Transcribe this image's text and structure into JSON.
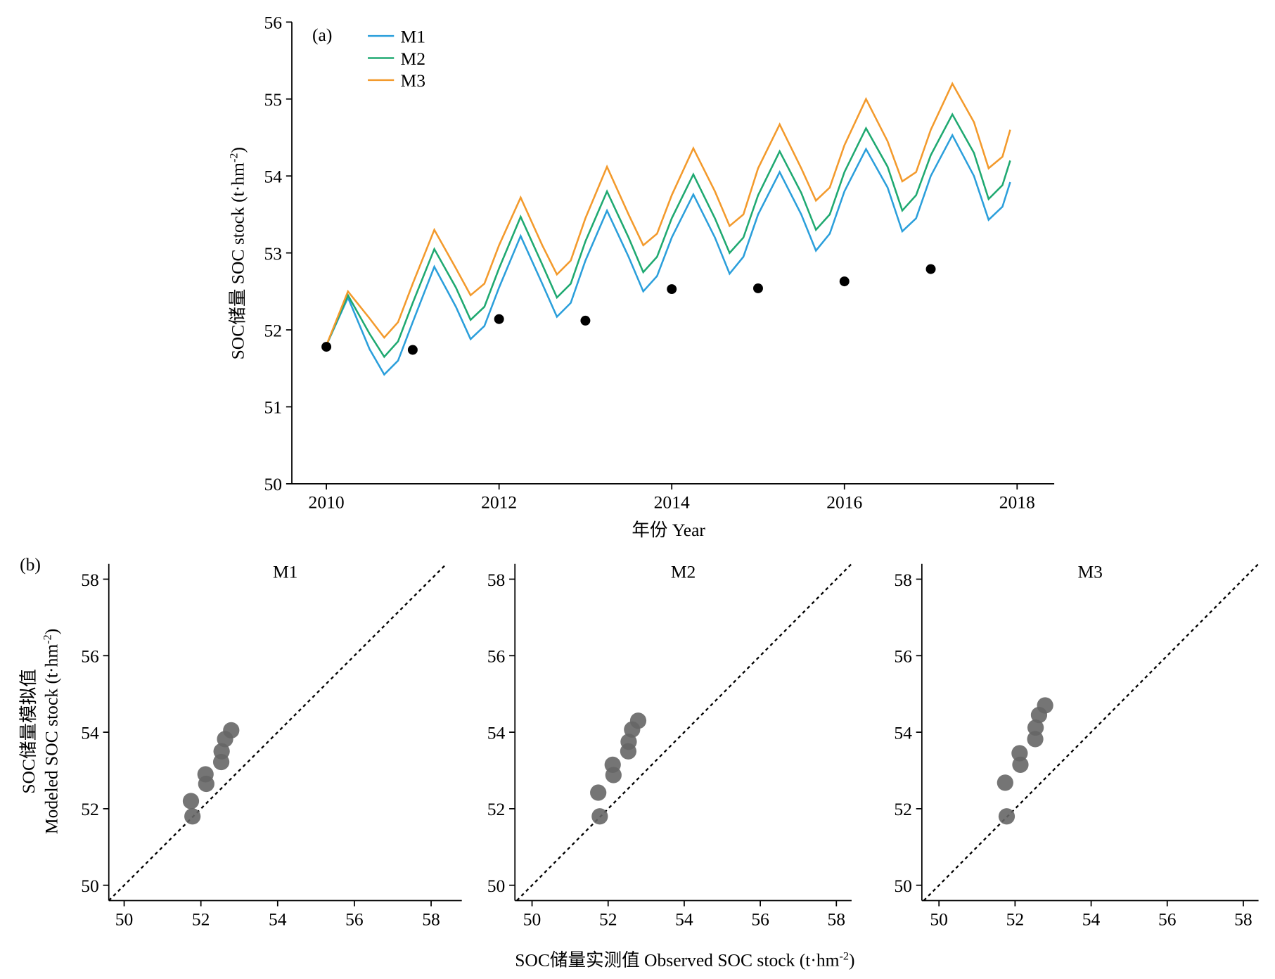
{
  "figure_labels": {
    "b_ylabel_cn": "SOC储量模拟值",
    "b_ylabel_en": "Modeled SOC stock (t·hm",
    "b_ylabel_sup": "-2",
    "b_ylabel_tail": ")",
    "b_xlabel": "SOC储量实测值 Observed SOC stock (t·hm",
    "b_xlabel_sup": "-2",
    "b_xlabel_tail": ")",
    "b_panel": "(b)"
  },
  "chart_data": [
    {
      "type": "line",
      "panel": "(a)",
      "xlabel": "年份 Year",
      "ylabel": "SOC储量 SOC stock (t·hm",
      "ylabel_sup": "-2",
      "ylabel_tail": ")",
      "x": [
        2010,
        2010.25,
        2010.5,
        2010.67,
        2010.83,
        2011,
        2011.25,
        2011.5,
        2011.67,
        2011.83,
        2012,
        2012.25,
        2012.5,
        2012.67,
        2012.83,
        2013,
        2013.25,
        2013.5,
        2013.67,
        2013.83,
        2014,
        2014.25,
        2014.5,
        2014.67,
        2014.83,
        2015,
        2015.25,
        2015.5,
        2015.67,
        2015.83,
        2016,
        2016.25,
        2016.5,
        2016.67,
        2016.83,
        2017,
        2017.25,
        2017.5,
        2017.67,
        2017.83,
        2017.92
      ],
      "series": [
        {
          "name": "M1",
          "color": "#2b9fdb",
          "values": [
            51.8,
            52.42,
            51.75,
            51.42,
            51.6,
            52.1,
            52.82,
            52.3,
            51.88,
            52.05,
            52.55,
            53.22,
            52.6,
            52.17,
            52.35,
            52.9,
            53.55,
            52.95,
            52.5,
            52.7,
            53.2,
            53.76,
            53.2,
            52.73,
            52.95,
            53.5,
            54.05,
            53.5,
            53.03,
            53.25,
            53.8,
            54.35,
            53.85,
            53.28,
            53.45,
            54.0,
            54.53,
            54.0,
            53.43,
            53.6,
            53.92
          ]
        },
        {
          "name": "M2",
          "color": "#1fa971",
          "values": [
            51.8,
            52.45,
            51.95,
            51.65,
            51.85,
            52.35,
            53.05,
            52.55,
            52.13,
            52.3,
            52.8,
            53.47,
            52.85,
            52.42,
            52.6,
            53.15,
            53.8,
            53.2,
            52.75,
            52.95,
            53.45,
            54.02,
            53.45,
            53.0,
            53.2,
            53.75,
            54.32,
            53.78,
            53.3,
            53.5,
            54.05,
            54.62,
            54.12,
            53.55,
            53.75,
            54.27,
            54.8,
            54.3,
            53.7,
            53.88,
            54.2
          ]
        },
        {
          "name": "M3",
          "color": "#f39a2c",
          "values": [
            51.8,
            52.5,
            52.15,
            51.9,
            52.1,
            52.6,
            53.3,
            52.8,
            52.45,
            52.6,
            53.1,
            53.72,
            53.1,
            52.72,
            52.9,
            53.45,
            54.12,
            53.5,
            53.1,
            53.25,
            53.75,
            54.36,
            53.8,
            53.35,
            53.5,
            54.1,
            54.67,
            54.1,
            53.68,
            53.85,
            54.4,
            55.0,
            54.45,
            53.93,
            54.05,
            54.6,
            55.2,
            54.7,
            54.1,
            54.25,
            54.6
          ]
        }
      ],
      "observed": {
        "color": "#000000",
        "x": [
          2010,
          2011,
          2012,
          2013,
          2014,
          2015,
          2016,
          2017
        ],
        "values": [
          51.78,
          51.74,
          52.14,
          52.12,
          52.53,
          52.54,
          52.63,
          52.79
        ]
      },
      "xlim": [
        2009.6,
        2018.43
      ],
      "xticks": [
        2010,
        2012,
        2014,
        2016,
        2018
      ],
      "ylim": [
        50,
        56
      ],
      "yticks": [
        50,
        51,
        52,
        53,
        54,
        55,
        56
      ],
      "legend": "upper left"
    },
    {
      "type": "scatter",
      "title": "M1",
      "color": "#666666",
      "reference_line": true,
      "x": [
        51.78,
        51.74,
        52.14,
        52.12,
        52.53,
        52.54,
        52.63,
        52.79
      ],
      "values": [
        51.8,
        52.2,
        52.65,
        52.9,
        53.22,
        53.5,
        53.82,
        54.05
      ],
      "xlim": [
        49.6,
        58.8
      ],
      "xticks": [
        50,
        52,
        54,
        56,
        58
      ],
      "ylim": [
        49.6,
        58.4
      ],
      "yticks": [
        50,
        52,
        54,
        56,
        58
      ]
    },
    {
      "type": "scatter",
      "title": "M2",
      "color": "#666666",
      "reference_line": true,
      "x": [
        51.78,
        51.74,
        52.14,
        52.12,
        52.53,
        52.54,
        52.63,
        52.79
      ],
      "values": [
        51.8,
        52.42,
        52.88,
        53.15,
        53.5,
        53.75,
        54.07,
        54.3
      ],
      "xlim": [
        49.55,
        58.4
      ],
      "xticks": [
        50,
        52,
        54,
        56,
        58
      ],
      "ylim": [
        49.6,
        58.4
      ],
      "yticks": [
        50,
        52,
        54,
        56,
        58
      ]
    },
    {
      "type": "scatter",
      "title": "M3",
      "color": "#666666",
      "reference_line": true,
      "x": [
        51.78,
        51.74,
        52.14,
        52.12,
        52.53,
        52.54,
        52.63,
        52.79
      ],
      "values": [
        51.8,
        52.68,
        53.15,
        53.45,
        53.82,
        54.12,
        54.45,
        54.7
      ],
      "xlim": [
        49.55,
        58.4
      ],
      "xticks": [
        50,
        52,
        54,
        56,
        58
      ],
      "ylim": [
        49.6,
        58.4
      ],
      "yticks": [
        50,
        52,
        54,
        56,
        58
      ]
    }
  ]
}
